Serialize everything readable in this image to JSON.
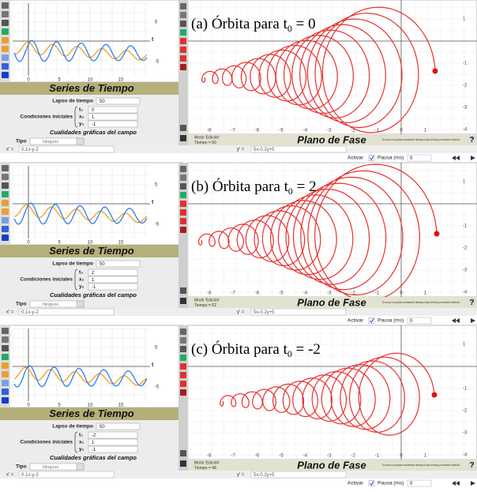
{
  "panels": [
    {
      "caption_prefix": "(a) Órbita para t",
      "caption_sub": "0",
      "caption_suffix": " = 0",
      "series_title": "Series de Tiempo",
      "ts_xticks": [
        "0",
        "5",
        "10",
        "15"
      ],
      "ts_yticks": [
        "5",
        "-5"
      ],
      "ts_axis": "t",
      "lapso_label": "Lapso de tiempo",
      "lapso": "50",
      "cond_label": "Condiciones iniciales",
      "t0_label": "t₀",
      "t0": "0",
      "x0_label": "x₀",
      "x0": "1",
      "y0_label": "y₀",
      "y0": "-1",
      "qual_label": "Cualidades gráficas del campo",
      "tipo_label": "Tipo",
      "tipo": "Ninguno",
      "mode": "Modo 'Edición'",
      "tiempo": "Tiempo = 50",
      "phase_title": "Plano de Fase",
      "hint": "Si la curva no se grafica correctamente, disminuya el lapso de tiempo y/o aumente la definición",
      "help": "?",
      "pp_xticks": [
        "-8",
        "-7",
        "-6",
        "-5",
        "-4",
        "-3",
        "-2",
        "-1",
        "0",
        "1"
      ],
      "pp_yticks": [
        "1",
        "-1",
        "-2",
        "-3",
        "-4"
      ],
      "xeq_label": "x' =",
      "xeq": "0.1x-y-2",
      "yeq_label": "y' =",
      "yeq": "5x-0.2y+5",
      "activar": "Activar",
      "pausa": "Pausa (ms)",
      "pausa_val": "0"
    },
    {
      "caption_prefix": "(b) Órbita para t",
      "caption_sub": "0",
      "caption_suffix": " = 2",
      "series_title": "Series de Tiempo",
      "ts_xticks": [
        "0",
        "5",
        "10",
        "15"
      ],
      "ts_yticks": [
        "5",
        "-5"
      ],
      "ts_axis": "t",
      "lapso_label": "Lapso de tiempo",
      "lapso": "50",
      "cond_label": "Condiciones iniciales",
      "t0_label": "t₀",
      "t0": "2",
      "x0_label": "x₀",
      "x0": "1",
      "y0_label": "y₀",
      "y0": "-1",
      "qual_label": "Cualidades gráficas del campo",
      "tipo_label": "Tipo",
      "tipo": "Ninguno",
      "mode": "Modo 'Edición'",
      "tiempo": "Tiempo = 52",
      "phase_title": "Plano de Fase",
      "hint": "Si la curva no se grafica correctamente, disminuya el lapso de tiempo y/o aumente la definición",
      "help": "?",
      "pp_xticks": [
        "-8",
        "-7",
        "-6",
        "-5",
        "-4",
        "-3",
        "-2",
        "-1",
        "0",
        "1"
      ],
      "pp_yticks": [
        "1",
        "-1",
        "-2",
        "-3",
        "-4"
      ],
      "xeq_label": "x' =",
      "xeq": "0.1x-y-2",
      "yeq_label": "y' =",
      "yeq": "5x-0.2y+5",
      "activar": "Activar",
      "pausa": "Pausa (ms)",
      "pausa_val": "0"
    },
    {
      "caption_prefix": "(c) Órbita para t",
      "caption_sub": "0",
      "caption_suffix": " = -2",
      "series_title": "Series de Tiempo",
      "ts_xticks": [
        "0",
        "5",
        "10",
        "15"
      ],
      "ts_yticks": [
        "5",
        "-5"
      ],
      "ts_axis": "t",
      "lapso_label": "Lapso de tiempo",
      "lapso": "50",
      "cond_label": "Condiciones iniciales",
      "t0_label": "t₀",
      "t0": "-2",
      "x0_label": "x₀",
      "x0": "1",
      "y0_label": "y₀",
      "y0": "-1",
      "qual_label": "Cualidades gráficas del campo",
      "tipo_label": "Tipo",
      "tipo": "Ninguno",
      "mode": "Modo 'Edición'",
      "tiempo": "Tiempo = 48",
      "phase_title": "Plano de Fase",
      "hint": "Si la curva no se grafica correctamente, disminuya el lapso de tiempo y/o aumente la definición",
      "help": "?",
      "pp_xticks": [
        "-8",
        "-7",
        "-6",
        "-5",
        "-4",
        "-3",
        "-2",
        "-1",
        "0",
        "1"
      ],
      "pp_yticks": [
        "1",
        "-1",
        "-2",
        "-3",
        "-4"
      ],
      "xeq_label": "x' =",
      "xeq": "0.1x-y-2",
      "yeq_label": "y' =",
      "yeq": "5x-0.2y+5",
      "activar": "Activar",
      "pausa": "Pausa (ms)",
      "pausa_val": "0"
    }
  ]
}
